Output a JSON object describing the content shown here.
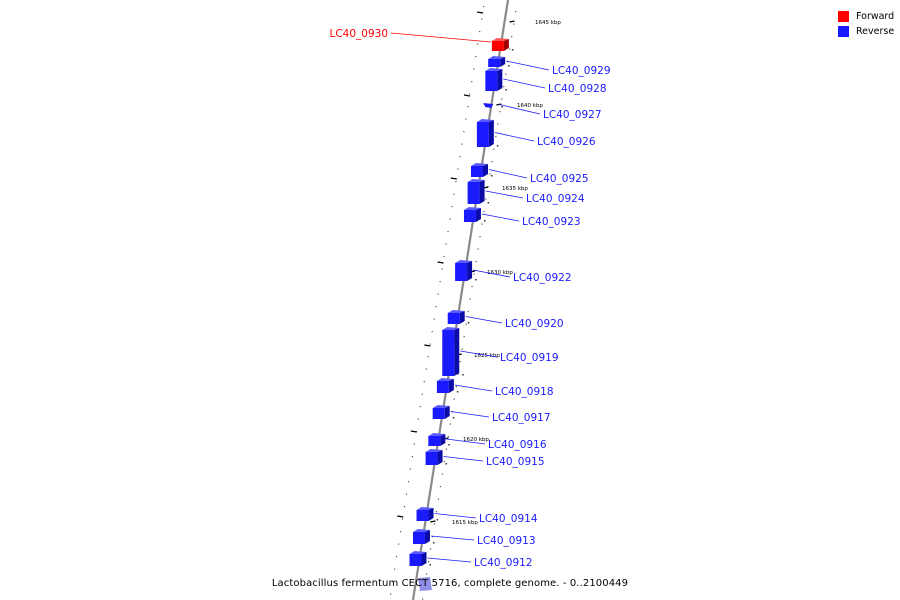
{
  "legend": {
    "forward": {
      "label": "Forward",
      "color": "#ff0000"
    },
    "reverse": {
      "label": "Reverse",
      "color": "#1a1aff"
    }
  },
  "caption": "Lactobacillus fermentum CECT 5716, complete genome. - 0..2100449",
  "scale_labels": [
    "1645 kbp",
    "1640 kbp",
    "1635 kbp",
    "1630 kbp",
    "1625 kbp",
    "1620 kbp",
    "1615 kbp"
  ],
  "genes": [
    {
      "name": "LC40_0930",
      "strand": "forward"
    },
    {
      "name": "LC40_0929",
      "strand": "reverse"
    },
    {
      "name": "LC40_0928",
      "strand": "reverse"
    },
    {
      "name": "LC40_0927",
      "strand": "reverse"
    },
    {
      "name": "LC40_0926",
      "strand": "reverse"
    },
    {
      "name": "LC40_0925",
      "strand": "reverse"
    },
    {
      "name": "LC40_0924",
      "strand": "reverse"
    },
    {
      "name": "LC40_0923",
      "strand": "reverse"
    },
    {
      "name": "LC40_0922",
      "strand": "reverse"
    },
    {
      "name": "LC40_0920",
      "strand": "reverse"
    },
    {
      "name": "LC40_0919",
      "strand": "reverse"
    },
    {
      "name": "LC40_0918",
      "strand": "reverse"
    },
    {
      "name": "LC40_0917",
      "strand": "reverse"
    },
    {
      "name": "LC40_0916",
      "strand": "reverse"
    },
    {
      "name": "LC40_0915",
      "strand": "reverse"
    },
    {
      "name": "LC40_0914",
      "strand": "reverse"
    },
    {
      "name": "LC40_0913",
      "strand": "reverse"
    },
    {
      "name": "LC40_0912",
      "strand": "reverse"
    }
  ]
}
